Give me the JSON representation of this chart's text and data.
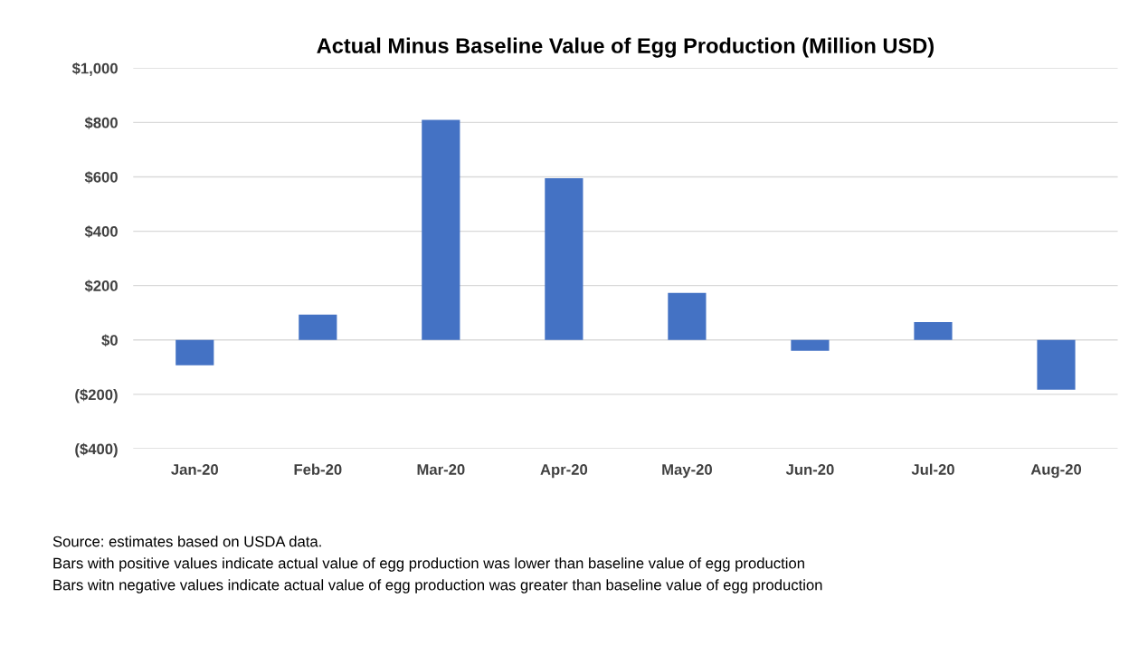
{
  "chart_data": {
    "type": "bar",
    "title": "Actual Minus Baseline Value of Egg Production (Million USD)",
    "categories": [
      "Jan-20",
      "Feb-20",
      "Mar-20",
      "Apr-20",
      "May-20",
      "Jun-20",
      "Jul-20",
      "Aug-20"
    ],
    "values": [
      -93,
      93,
      810,
      595,
      173,
      -40,
      66,
      -183
    ],
    "color": "#4472c4",
    "ylim": [
      -400,
      1000
    ],
    "yticks": [
      {
        "value": -400,
        "label": "($400)"
      },
      {
        "value": -200,
        "label": "($200)"
      },
      {
        "value": 0,
        "label": "$0"
      },
      {
        "value": 200,
        "label": "$200"
      },
      {
        "value": 400,
        "label": "$400"
      },
      {
        "value": 600,
        "label": "$600"
      },
      {
        "value": 800,
        "label": "$800"
      },
      {
        "value": 1000,
        "label": "$1,000"
      }
    ],
    "grid": "y",
    "annotations": [
      "Source: estimates based on USDA data.",
      "Bars with positive values indicate actual value of egg production was lower than baseline value of egg production",
      "Bars witn negative values indicate actual value of egg production was greater than baseline value of egg production"
    ]
  }
}
